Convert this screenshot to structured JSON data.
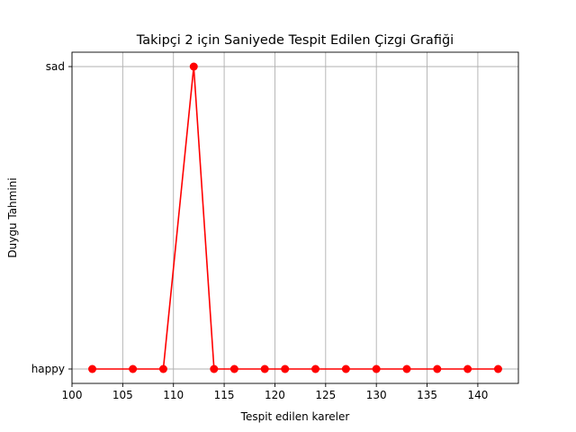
{
  "chart_data": {
    "type": "line",
    "title": "Takipçi 2 için Saniyede Tespit Edilen Çizgi Grafiği",
    "xlabel": "Tespit edilen kareler",
    "ylabel": "Duygu Tahmini",
    "xlim": [
      100,
      144
    ],
    "x_ticks": [
      100,
      105,
      110,
      115,
      120,
      125,
      130,
      135,
      140
    ],
    "y_categories": [
      "happy",
      "sad"
    ],
    "grid": true,
    "series": [
      {
        "color": "#ff0000",
        "marker": "circle",
        "x": [
          102,
          106,
          109,
          112,
          114,
          116,
          119,
          121,
          124,
          127,
          130,
          133,
          136,
          139,
          142
        ],
        "y": [
          "happy",
          "happy",
          "happy",
          "sad",
          "happy",
          "happy",
          "happy",
          "happy",
          "happy",
          "happy",
          "happy",
          "happy",
          "happy",
          "happy",
          "happy"
        ]
      }
    ]
  }
}
